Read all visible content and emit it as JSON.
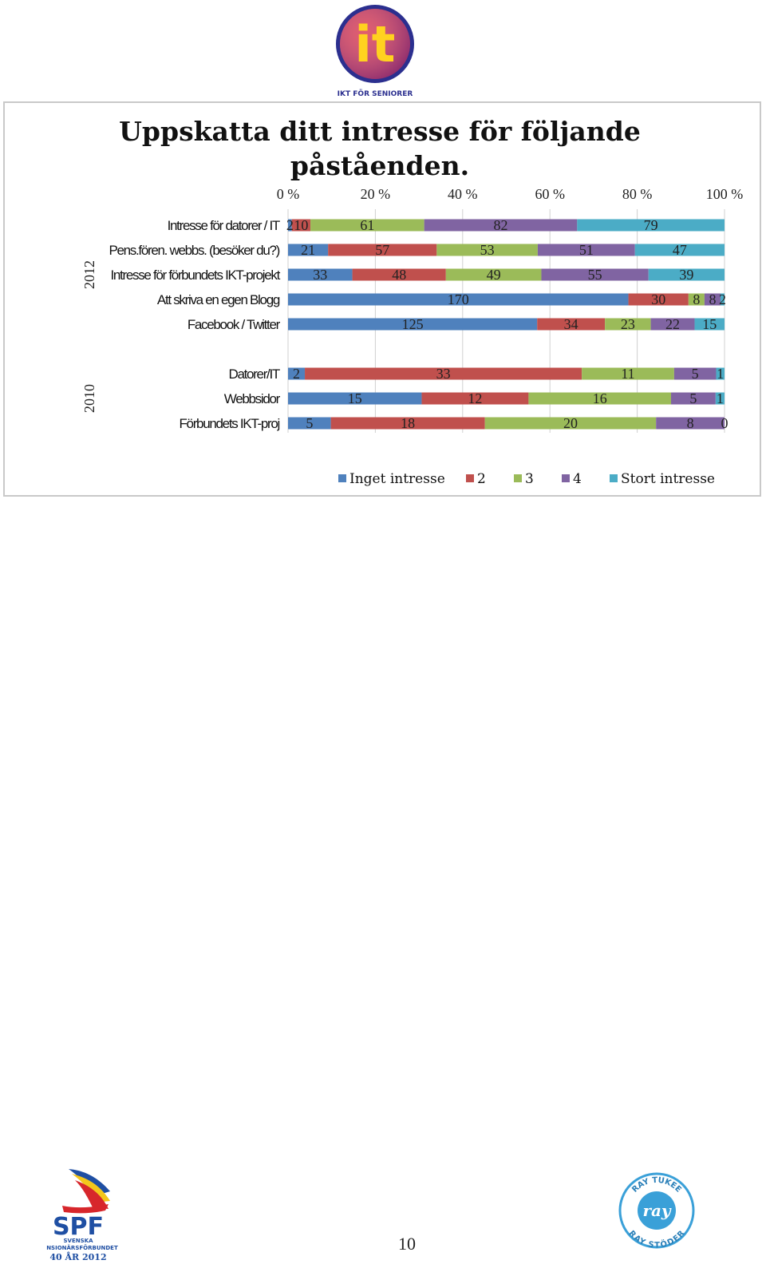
{
  "logos": {
    "top": {
      "mark_text": "it",
      "caption": "IKT FÖR SENIORER"
    },
    "bottom_left": {
      "name": "SPF",
      "line1": "SVENSKA",
      "line2": "PENSIONÄRSFÖRBUNDET",
      "line3": "40 ÅR 2012"
    },
    "bottom_right": {
      "top_text": "RAY TUKEE",
      "center_text": "ray",
      "bottom_text": "RAY STÖDER"
    }
  },
  "page_number": "10",
  "colors": {
    "inget_intresse": "#4f81bd",
    "2": "#c0504d",
    "3": "#9bbb59",
    "4": "#8064a2",
    "stort_intresse": "#4bacc6"
  },
  "chart_data": {
    "type": "bar",
    "orientation": "horizontal",
    "stacked": "percent",
    "title": "Uppskatta ditt intresse för följande påståenden.",
    "title_lines": [
      "Uppskatta ditt intresse för följande",
      "påståenden."
    ],
    "x_ticks": [
      "0 %",
      "20 %",
      "40 %",
      "60 %",
      "80 %",
      "100 %"
    ],
    "xlim": [
      0,
      100
    ],
    "grid": true,
    "legend_position": "bottom",
    "series_names": [
      "Inget intresse",
      "2",
      "3",
      "4",
      "Stort intresse"
    ],
    "groups": [
      {
        "label": "2012",
        "rows": [
          {
            "label": "Intresse för datorer / IT",
            "values": [
              2,
              10,
              61,
              82,
              79
            ],
            "labels": [
              "2",
              "10",
              "61",
              "82",
              "79"
            ]
          },
          {
            "label": "Pens.fören. webbs. (besöker du?)",
            "values": [
              21,
              57,
              53,
              51,
              47
            ],
            "labels": [
              "21",
              "57",
              "53",
              "51",
              "47"
            ]
          },
          {
            "label": "Intresse för förbundets IKT-projekt",
            "values": [
              33,
              48,
              49,
              55,
              39
            ],
            "labels": [
              "33",
              "48",
              "49",
              "55",
              "39"
            ]
          },
          {
            "label": "Att skriva en egen Blogg",
            "values": [
              170,
              30,
              8,
              8,
              2
            ],
            "labels": [
              "170",
              "30",
              "8",
              "8",
              "2"
            ]
          },
          {
            "label": "Facebook / Twitter",
            "values": [
              125,
              34,
              23,
              22,
              15
            ],
            "labels": [
              "125",
              "34",
              "23",
              "22",
              "15"
            ]
          }
        ]
      },
      {
        "label": "2010",
        "rows": [
          {
            "label": "Datorer/IT",
            "values": [
              2,
              33,
              11,
              5,
              1
            ],
            "labels": [
              "2",
              "33",
              "11",
              "5",
              "1"
            ]
          },
          {
            "label": "Webbsidor",
            "values": [
              15,
              12,
              16,
              5,
              1
            ],
            "labels": [
              "15",
              "12",
              "16",
              "5",
              "1"
            ]
          },
          {
            "label": "Förbundets IKT-proj",
            "values": [
              5,
              18,
              20,
              8,
              0
            ],
            "labels": [
              "5",
              "18",
              "20",
              "8",
              "0"
            ]
          }
        ]
      }
    ]
  }
}
